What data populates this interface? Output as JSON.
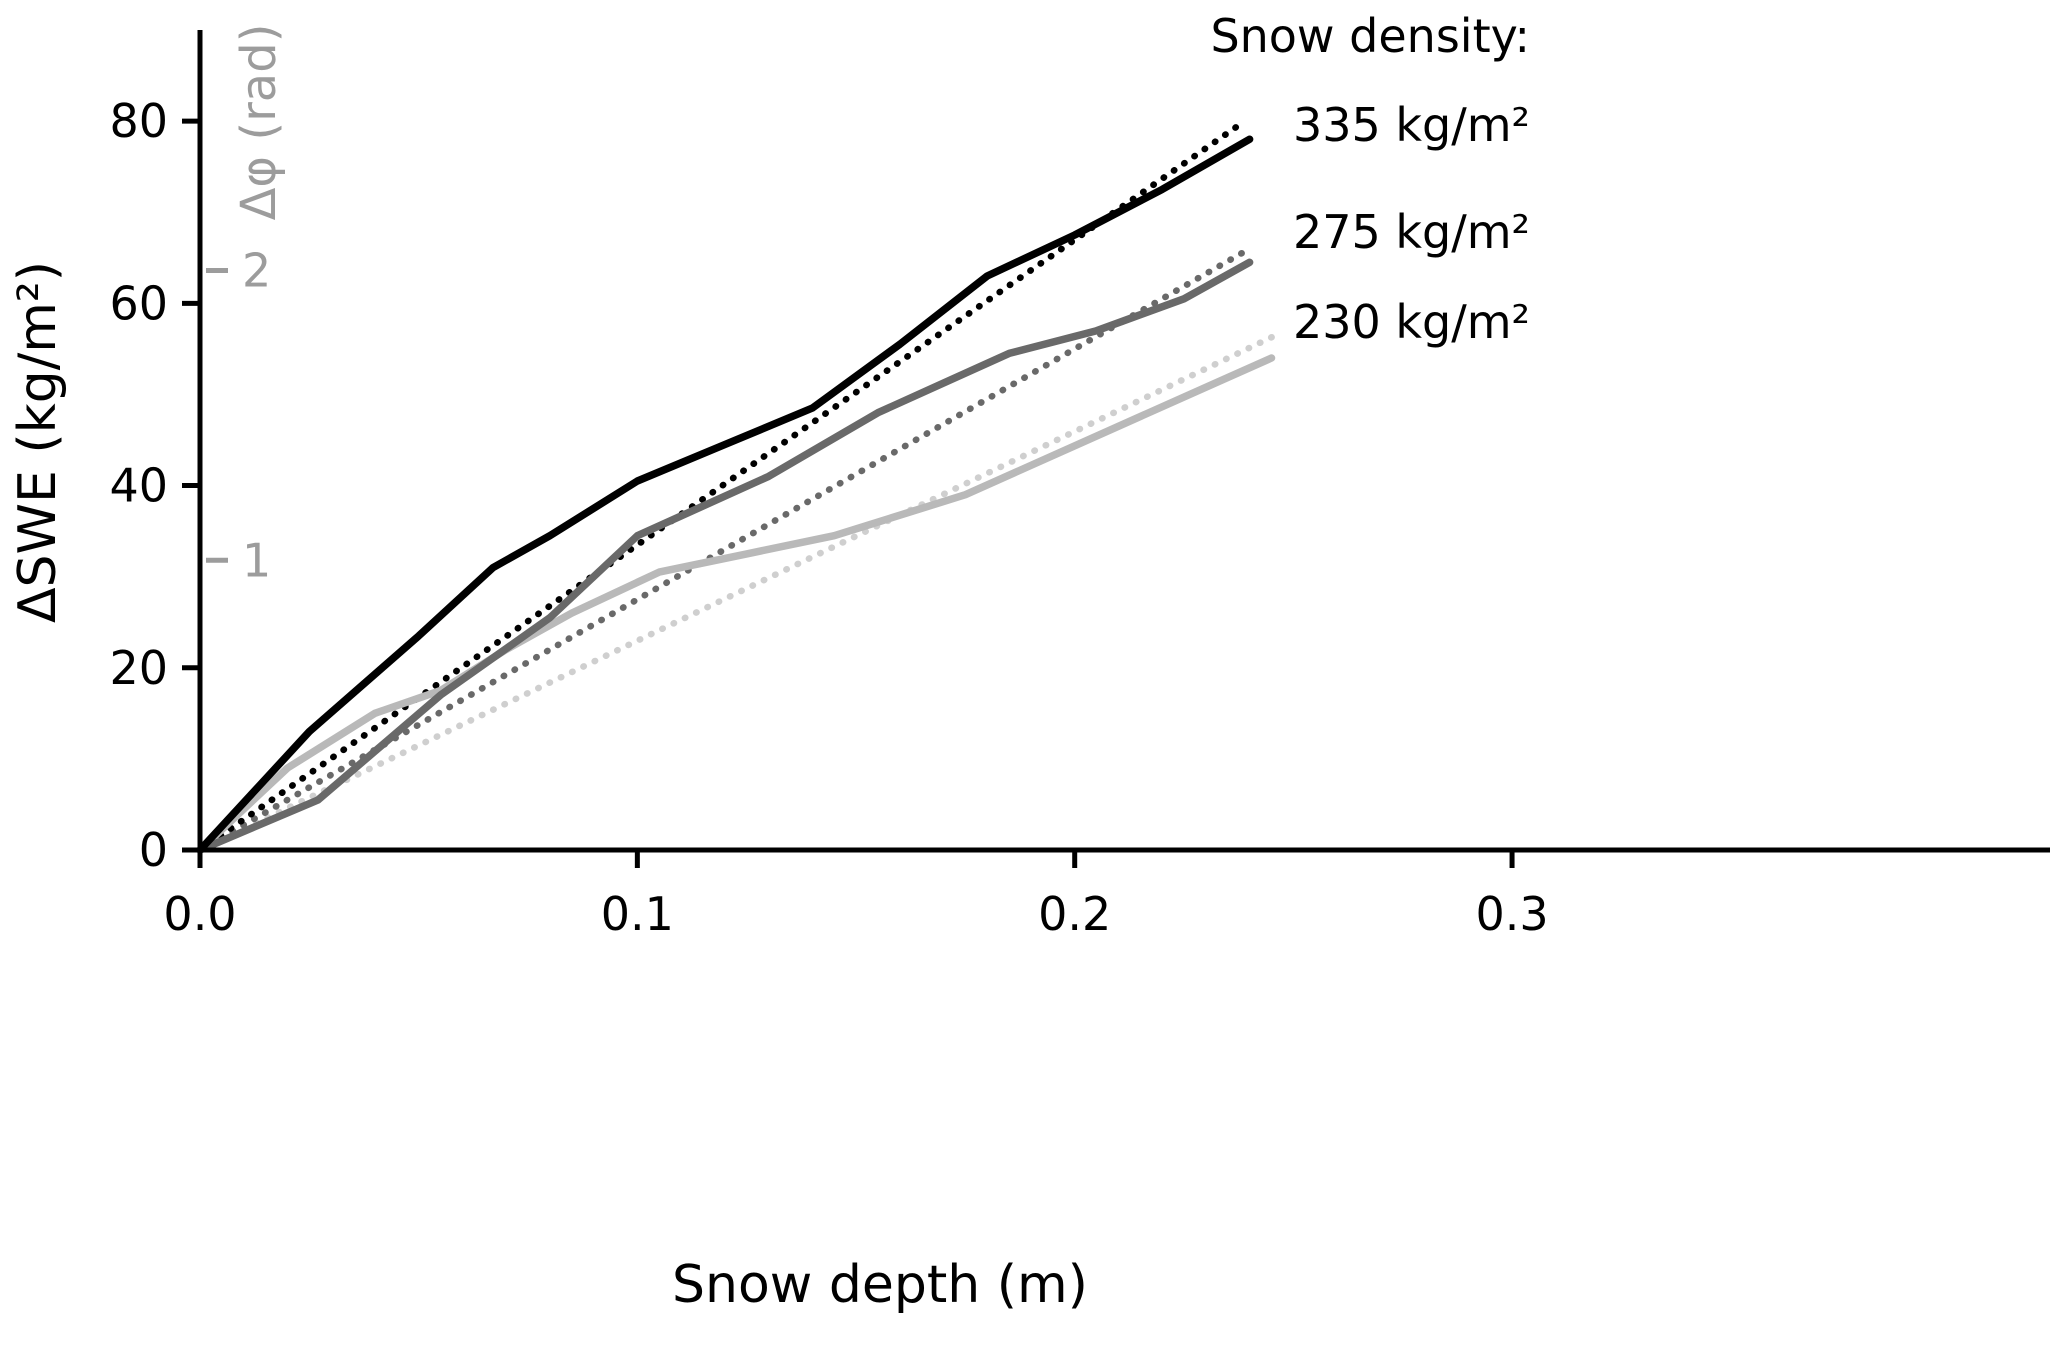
{
  "chart_data": {
    "type": "line",
    "title": "",
    "xlabel": "Snow depth (m)",
    "ylabel": "ΔSWE (kg/m²)",
    "xlim": [
      0,
      0.423
    ],
    "ylim": [
      0,
      90
    ],
    "xticks": [
      0.0,
      0.1,
      0.2,
      0.3
    ],
    "xtick_labels": [
      "0.0",
      "0.1",
      "0.2",
      "0.3"
    ],
    "yticks": [
      0,
      20,
      40,
      60,
      80
    ],
    "ytick_labels": [
      "0",
      "20",
      "40",
      "60",
      "80"
    ],
    "grid": "off",
    "legend_position": "top-right",
    "secondary_axis": {
      "label": "Δφ (rad)",
      "units": "rad",
      "color": "#9c9c9c",
      "ticks": [
        {
          "label": "1",
          "y_swe": 31.8
        },
        {
          "label": "2",
          "y_swe": 63.6
        }
      ]
    },
    "legend": {
      "title": "Snow density:",
      "entries": [
        {
          "label": "335 kg/m²",
          "color": "#000000"
        },
        {
          "label": "275 kg/m²",
          "color": "#696969"
        },
        {
          "label": "230 kg/m²",
          "color": "#b9b9b9"
        }
      ]
    },
    "series": [
      {
        "name": "230-linear-fit",
        "density": "230 kg/m²",
        "style": "dotted",
        "color": "#cfcfcf",
        "points": [
          [
            0,
            0
          ],
          [
            0.246,
            56.5
          ]
        ]
      },
      {
        "name": "275-linear-fit",
        "density": "275 kg/m²",
        "style": "dotted",
        "color": "#696969",
        "points": [
          [
            0,
            0
          ],
          [
            0.24,
            66.0
          ]
        ]
      },
      {
        "name": "335-linear-fit",
        "density": "335 kg/m²",
        "style": "dotted",
        "color": "#000000",
        "points": [
          [
            0,
            0
          ],
          [
            0.238,
            79.7
          ]
        ]
      },
      {
        "name": "230-measured",
        "density": "230 kg/m²",
        "style": "solid",
        "color": "#b9b9b9",
        "points": [
          [
            0,
            0
          ],
          [
            0.02,
            9
          ],
          [
            0.04,
            15
          ],
          [
            0.055,
            17.5
          ],
          [
            0.07,
            22
          ],
          [
            0.085,
            26
          ],
          [
            0.105,
            30.5
          ],
          [
            0.125,
            32.5
          ],
          [
            0.145,
            34.5
          ],
          [
            0.175,
            39
          ],
          [
            0.21,
            46.5
          ],
          [
            0.245,
            54
          ]
        ]
      },
      {
        "name": "275-measured",
        "density": "275 kg/m²",
        "style": "solid",
        "color": "#696969",
        "points": [
          [
            0,
            0
          ],
          [
            0.027,
            5.5
          ],
          [
            0.055,
            17
          ],
          [
            0.08,
            25.5
          ],
          [
            0.1,
            34.5
          ],
          [
            0.13,
            41
          ],
          [
            0.155,
            48
          ],
          [
            0.185,
            54.5
          ],
          [
            0.205,
            57
          ],
          [
            0.225,
            60.5
          ],
          [
            0.24,
            64.5
          ]
        ]
      },
      {
        "name": "335-measured",
        "density": "335 kg/m²",
        "style": "solid",
        "color": "#000000",
        "points": [
          [
            0,
            0
          ],
          [
            0.025,
            13
          ],
          [
            0.05,
            23.5
          ],
          [
            0.067,
            31
          ],
          [
            0.08,
            34.5
          ],
          [
            0.1,
            40.5
          ],
          [
            0.12,
            44.5
          ],
          [
            0.14,
            48.5
          ],
          [
            0.16,
            55.5
          ],
          [
            0.18,
            63
          ],
          [
            0.2,
            67.5
          ],
          [
            0.22,
            72.5
          ],
          [
            0.24,
            78
          ]
        ]
      }
    ]
  }
}
